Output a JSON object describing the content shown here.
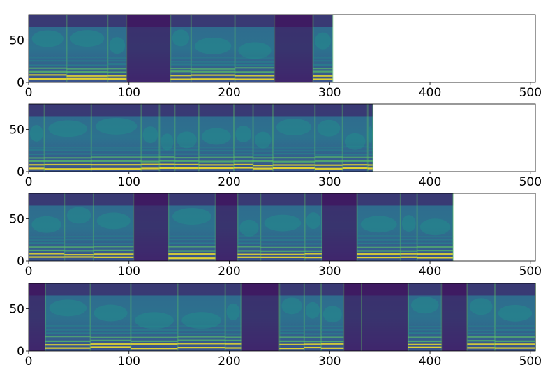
{
  "chart_data": [
    {
      "type": "heatmap",
      "xlim": [
        0,
        505
      ],
      "ylim": [
        0,
        80
      ],
      "data_extent_x": 303,
      "x_ticks": [
        0,
        100,
        200,
        300,
        400,
        500
      ],
      "y_ticks": [
        0,
        50
      ],
      "x_tick_labels": [
        "0",
        "100",
        "200",
        "300",
        "400",
        "500"
      ],
      "y_tick_labels": [
        "0",
        "50"
      ],
      "colormap": "viridis",
      "grid": false
    },
    {
      "type": "heatmap",
      "xlim": [
        0,
        505
      ],
      "ylim": [
        0,
        80
      ],
      "data_extent_x": 343,
      "x_ticks": [
        0,
        100,
        200,
        300,
        400,
        500
      ],
      "y_ticks": [
        0,
        50
      ],
      "x_tick_labels": [
        "0",
        "100",
        "200",
        "300",
        "400",
        "500"
      ],
      "y_tick_labels": [
        "0",
        "50"
      ],
      "colormap": "viridis",
      "grid": false
    },
    {
      "type": "heatmap",
      "xlim": [
        0,
        505
      ],
      "ylim": [
        0,
        80
      ],
      "data_extent_x": 423,
      "x_ticks": [
        0,
        100,
        200,
        300,
        400,
        500
      ],
      "y_ticks": [
        0,
        50
      ],
      "x_tick_labels": [
        "0",
        "100",
        "200",
        "300",
        "400",
        "500"
      ],
      "y_tick_labels": [
        "0",
        "50"
      ],
      "colormap": "viridis",
      "grid": false
    },
    {
      "type": "heatmap",
      "xlim": [
        0,
        505
      ],
      "ylim": [
        0,
        80
      ],
      "data_extent_x": 505,
      "x_ticks": [
        0,
        100,
        200,
        300,
        400,
        500
      ],
      "y_ticks": [
        0,
        50
      ],
      "x_tick_labels": [
        "0",
        "100",
        "200",
        "300",
        "400",
        "500"
      ],
      "y_tick_labels": [
        "0",
        "50"
      ],
      "colormap": "viridis",
      "grid": false
    }
  ],
  "colors": {
    "viridis_dark": "#440154",
    "viridis_blue": "#31688e",
    "viridis_teal": "#21918c",
    "viridis_green": "#5ec962",
    "viridis_yellow": "#fde725",
    "axis": "#000000",
    "background": "#ffffff"
  }
}
